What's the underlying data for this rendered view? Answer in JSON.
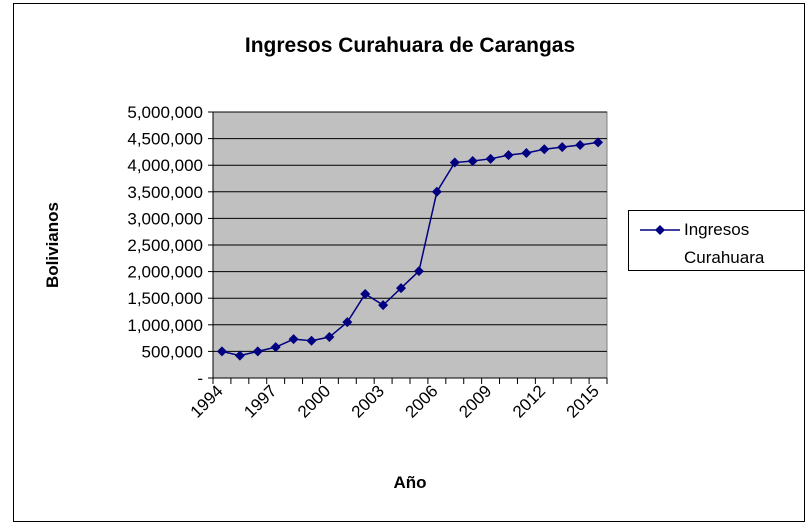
{
  "chart_data": {
    "type": "line",
    "title": "Ingresos Curahuara de Carangas",
    "x_label": "Año",
    "y_label": "Bolivianos",
    "categories": [
      "1994",
      null,
      null,
      "1997",
      null,
      null,
      "2000",
      null,
      null,
      "2003",
      null,
      null,
      "2006",
      null,
      null,
      "2009",
      null,
      null,
      "2012",
      null,
      null,
      "2015"
    ],
    "series": [
      {
        "name": "Ingresos Curahuara",
        "color": "#000080",
        "values": [
          500000,
          420000,
          500000,
          580000,
          730000,
          700000,
          770000,
          1050000,
          1580000,
          1370000,
          1690000,
          2010000,
          3500000,
          4050000,
          4080000,
          4120000,
          4190000,
          4230000,
          4300000,
          4340000,
          4380000,
          4430000
        ]
      }
    ],
    "ylim": [
      0,
      5000000
    ],
    "yticks": [
      {
        "value": 0,
        "label": "-"
      },
      {
        "value": 500000,
        "label": "500,000"
      },
      {
        "value": 1000000,
        "label": "1,000,000"
      },
      {
        "value": 1500000,
        "label": "1,500,000"
      },
      {
        "value": 2000000,
        "label": "2,000,000"
      },
      {
        "value": 2500000,
        "label": "2,500,000"
      },
      {
        "value": 3000000,
        "label": "3,000,000"
      },
      {
        "value": 3500000,
        "label": "3,500,000"
      },
      {
        "value": 4000000,
        "label": "4,000,000"
      },
      {
        "value": 4500000,
        "label": "4,500,000"
      },
      {
        "value": 5000000,
        "label": "5,000,000"
      }
    ],
    "grid": true,
    "legend": "right"
  }
}
